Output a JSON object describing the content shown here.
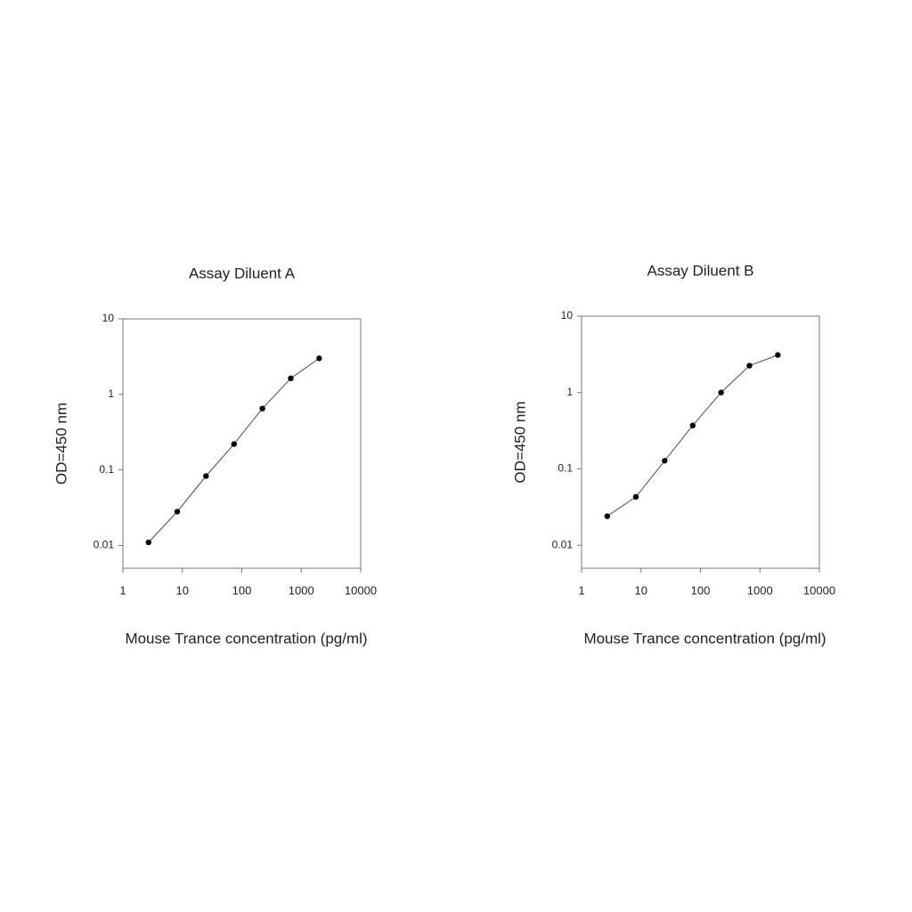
{
  "chart_data": [
    {
      "type": "line",
      "title": "Assay Diluent A",
      "x_label": "Mouse Trance concentration (pg/ml)",
      "y_label": "OD=450 nm",
      "x": [
        2.7,
        8.2,
        25,
        74,
        222,
        667,
        2000
      ],
      "values": [
        0.011,
        0.028,
        0.083,
        0.22,
        0.65,
        1.63,
        3.0
      ],
      "color": "#000000",
      "x_log": true,
      "y_log": true,
      "xlim": [
        1,
        10000
      ],
      "ylim": [
        0.005,
        10
      ],
      "xticks": [
        1,
        10,
        100,
        1000,
        10000
      ],
      "yticks": [
        0.01,
        0.1,
        1,
        10
      ]
    },
    {
      "type": "line",
      "title": "Assay Diluent B",
      "x_label": "Mouse Trance concentration (pg/ml)",
      "y_label": "OD=450 nm",
      "x": [
        2.7,
        8.2,
        25,
        74,
        222,
        667,
        2000
      ],
      "values": [
        0.024,
        0.043,
        0.128,
        0.37,
        1.0,
        2.25,
        3.1
      ],
      "color": "#000000",
      "x_log": true,
      "y_log": true,
      "xlim": [
        1,
        10000
      ],
      "ylim": [
        0.005,
        10
      ],
      "xticks": [
        1,
        10,
        100,
        1000,
        10000
      ],
      "yticks": [
        0.01,
        0.1,
        1,
        10
      ]
    }
  ]
}
